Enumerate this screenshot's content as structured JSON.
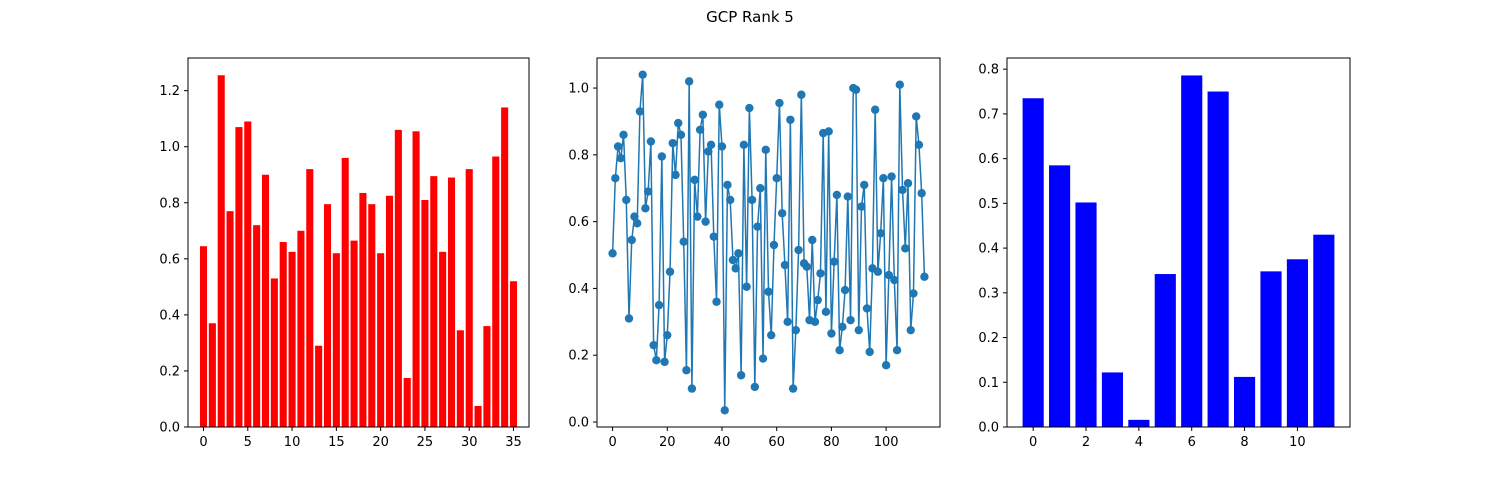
{
  "figure": {
    "suptitle": "GCP Rank 5"
  },
  "chart_data": [
    {
      "type": "bar",
      "color": "#ff0000",
      "x": [
        0,
        1,
        2,
        3,
        4,
        5,
        6,
        7,
        8,
        9,
        10,
        11,
        12,
        13,
        14,
        15,
        16,
        17,
        18,
        19,
        20,
        21,
        22,
        23,
        24,
        25,
        26,
        27,
        28,
        29,
        30,
        31,
        32,
        33,
        34,
        35
      ],
      "values": [
        0.645,
        0.37,
        1.255,
        0.77,
        1.07,
        1.09,
        0.72,
        0.9,
        0.53,
        0.66,
        0.625,
        0.7,
        0.92,
        0.29,
        0.795,
        0.62,
        0.96,
        0.665,
        0.835,
        0.795,
        0.62,
        0.825,
        1.06,
        0.175,
        1.055,
        0.81,
        0.895,
        0.625,
        0.89,
        0.345,
        0.92,
        0.075,
        0.36,
        0.965,
        1.14,
        0.52
      ],
      "xlim": [
        -1.75,
        36.75
      ],
      "ylim": [
        0,
        1.3165
      ],
      "xticks": [
        0,
        5,
        10,
        15,
        20,
        25,
        30,
        35
      ],
      "yticks": [
        0.0,
        0.2,
        0.4,
        0.6,
        0.8,
        1.0,
        1.2
      ],
      "ytick_labels": [
        "0.0",
        "0.2",
        "0.4",
        "0.6",
        "0.8",
        "1.0",
        "1.2"
      ]
    },
    {
      "type": "line",
      "color": "#1f77b4",
      "marker": "circle",
      "y": [
        0.505,
        0.73,
        0.825,
        0.79,
        0.86,
        0.665,
        0.31,
        0.545,
        0.615,
        0.595,
        0.93,
        1.04,
        0.64,
        0.69,
        0.84,
        0.23,
        0.185,
        0.35,
        0.795,
        0.18,
        0.26,
        0.45,
        0.835,
        0.74,
        0.895,
        0.86,
        0.54,
        0.155,
        1.02,
        0.1,
        0.725,
        0.615,
        0.875,
        0.92,
        0.6,
        0.81,
        0.83,
        0.555,
        0.36,
        0.95,
        0.825,
        0.035,
        0.71,
        0.665,
        0.485,
        0.46,
        0.505,
        0.14,
        0.83,
        0.405,
        0.94,
        0.665,
        0.105,
        0.585,
        0.7,
        0.19,
        0.815,
        0.39,
        0.26,
        0.53,
        0.73,
        0.955,
        0.625,
        0.47,
        0.3,
        0.905,
        0.1,
        0.275,
        0.515,
        0.98,
        0.475,
        0.465,
        0.305,
        0.545,
        0.3,
        0.365,
        0.445,
        0.865,
        0.33,
        0.87,
        0.265,
        0.48,
        0.68,
        0.215,
        0.285,
        0.395,
        0.675,
        0.305,
        1.0,
        0.995,
        0.275,
        0.645,
        0.71,
        0.34,
        0.21,
        0.46,
        0.935,
        0.45,
        0.565,
        0.73,
        0.17,
        0.44,
        0.735,
        0.425,
        0.215,
        1.01,
        0.695,
        0.52,
        0.715,
        0.275,
        0.385,
        0.915,
        0.83,
        0.685,
        0.435
      ],
      "xlim": [
        -5.7,
        119.7
      ],
      "ylim": [
        -0.015,
        1.09
      ],
      "xticks": [
        0,
        20,
        40,
        60,
        80,
        100
      ],
      "yticks": [
        0.0,
        0.2,
        0.4,
        0.6,
        0.8,
        1.0
      ],
      "ytick_labels": [
        "0.0",
        "0.2",
        "0.4",
        "0.6",
        "0.8",
        "1.0"
      ]
    },
    {
      "type": "bar",
      "color": "#0000ff",
      "x": [
        0,
        1,
        2,
        3,
        4,
        5,
        6,
        7,
        8,
        9,
        10,
        11
      ],
      "values": [
        0.735,
        0.585,
        0.502,
        0.122,
        0.016,
        0.342,
        0.786,
        0.75,
        0.112,
        0.348,
        0.375,
        0.43
      ],
      "xlim": [
        -0.99,
        11.99
      ],
      "ylim": [
        0,
        0.825
      ],
      "xticks": [
        0,
        2,
        4,
        6,
        8,
        10
      ],
      "yticks": [
        0.0,
        0.1,
        0.2,
        0.3,
        0.4,
        0.5,
        0.6,
        0.7,
        0.8
      ],
      "ytick_labels": [
        "0.0",
        "0.1",
        "0.2",
        "0.3",
        "0.4",
        "0.5",
        "0.6",
        "0.7",
        "0.8"
      ]
    }
  ]
}
